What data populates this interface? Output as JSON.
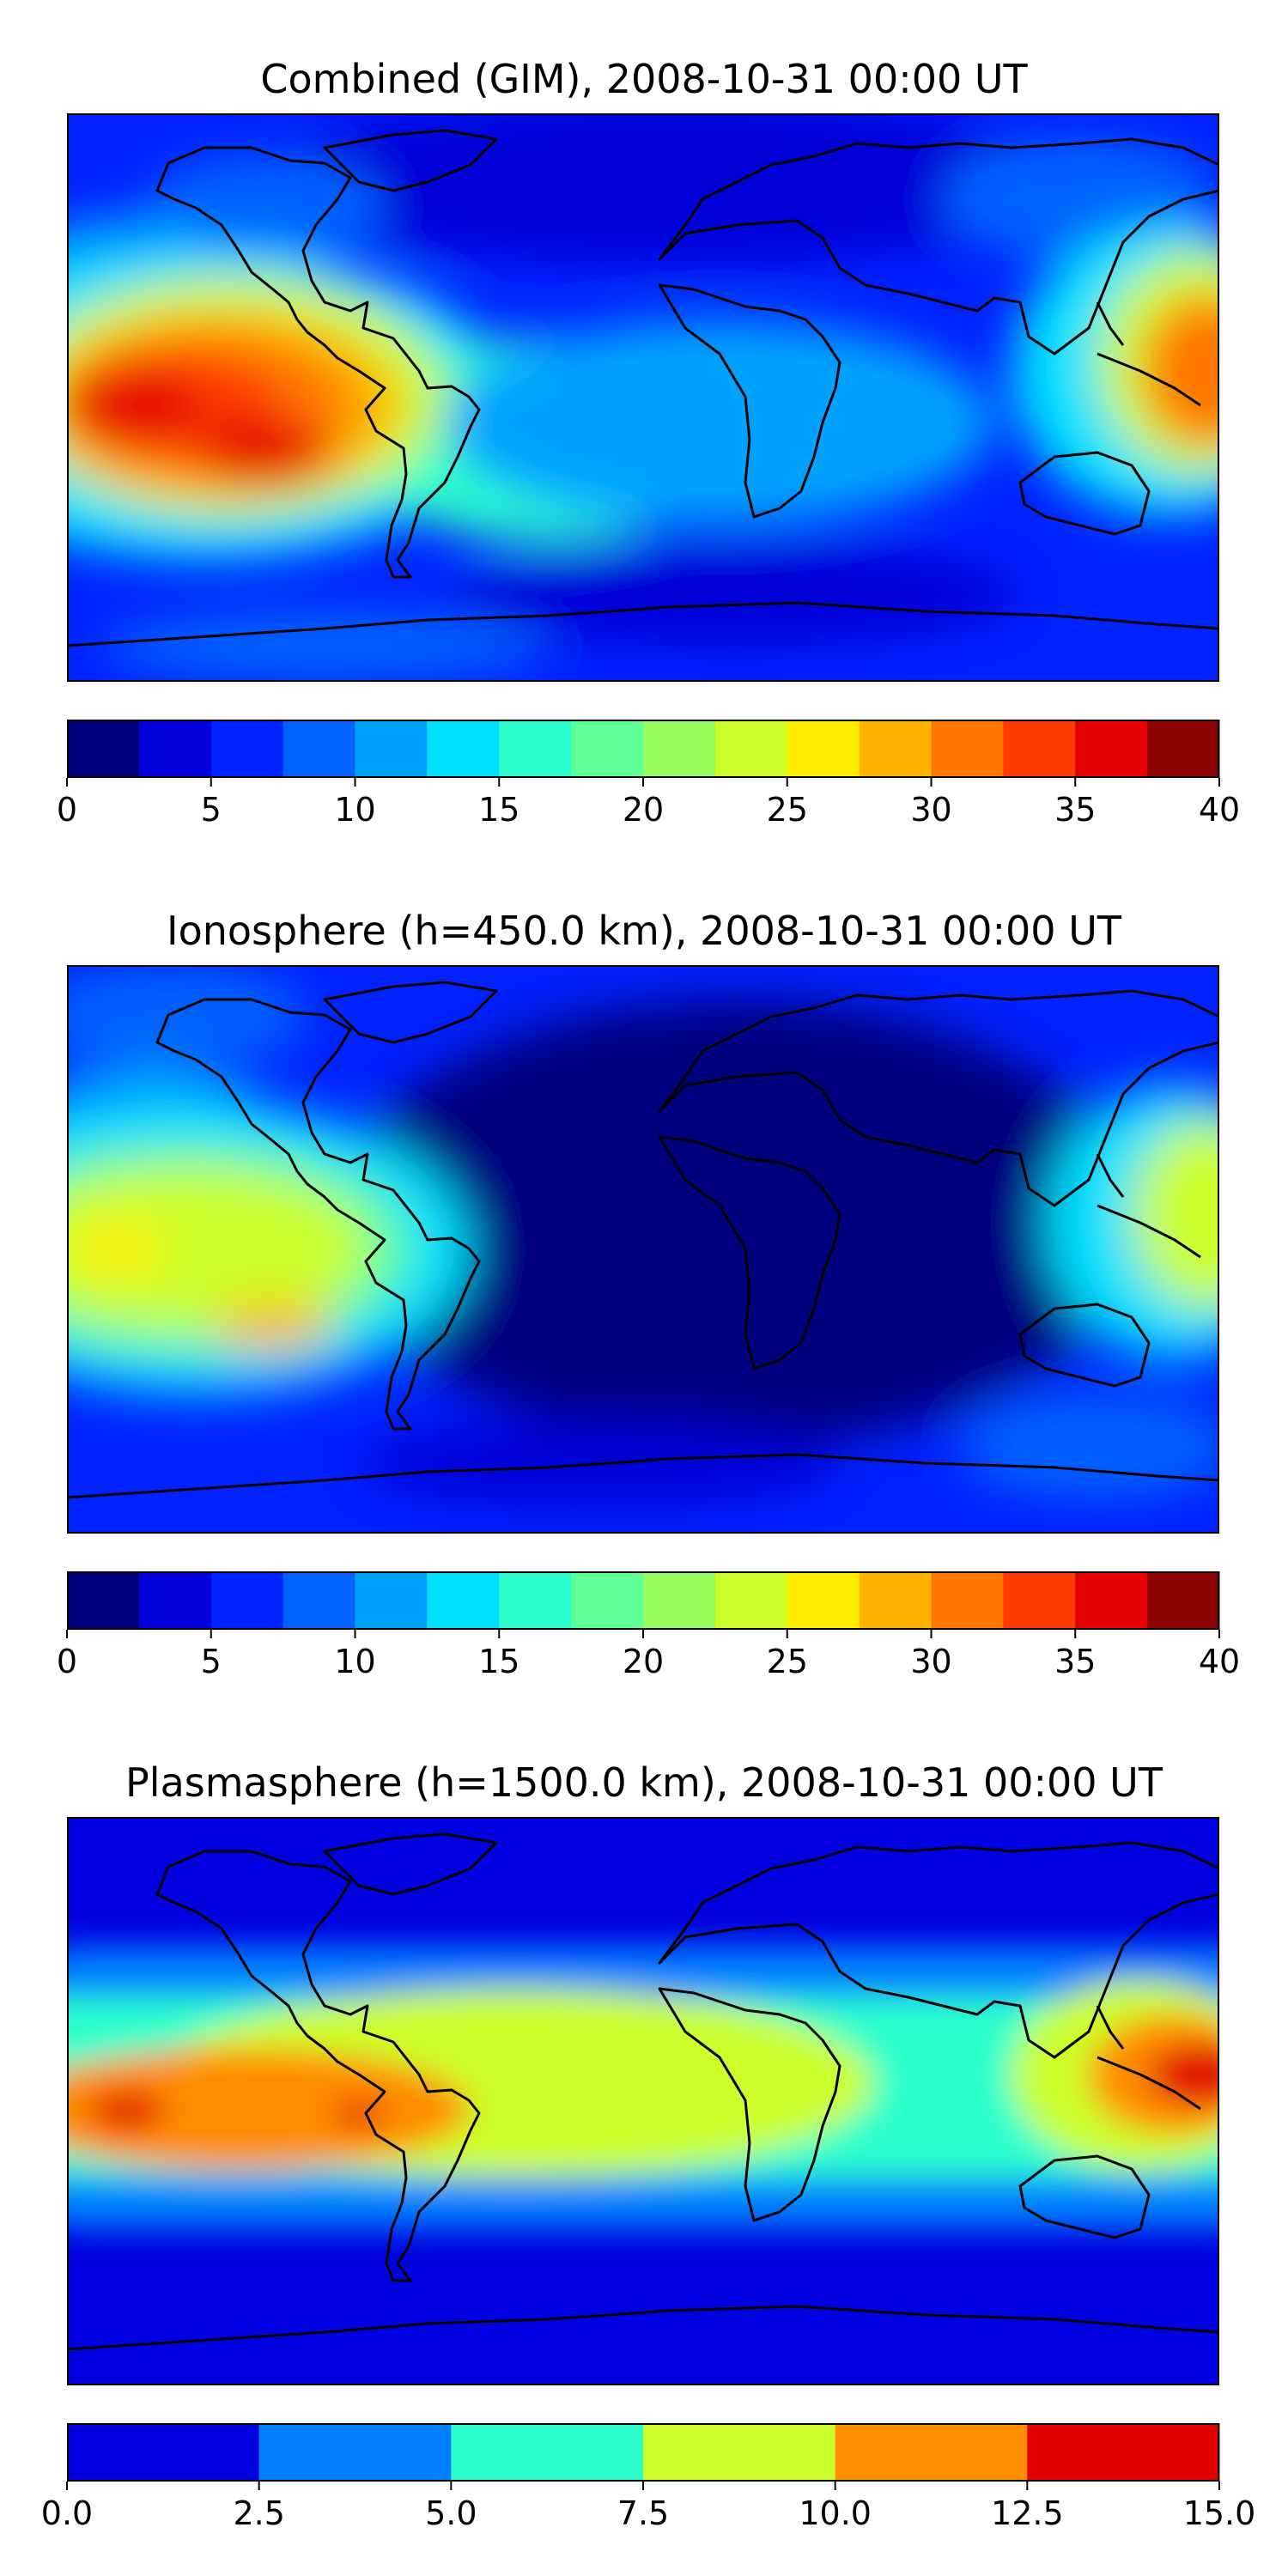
{
  "colors": {
    "jet15": [
      "#00007f",
      "#0000d8",
      "#0022ff",
      "#0063ff",
      "#00a2ff",
      "#00e0ff",
      "#2affcc",
      "#5fff96",
      "#96ff5f",
      "#ccff2a",
      "#ffee00",
      "#ffb200",
      "#ff7700",
      "#ff3b00",
      "#e50000",
      "#8b0000"
    ],
    "jet6": [
      "#0000e0",
      "#0080ff",
      "#2affcc",
      "#ccff2a",
      "#ff8c00",
      "#e00000"
    ]
  },
  "chart_data": [
    {
      "type": "heatmap",
      "title": "Combined (GIM), 2008-10-31 00:00 UT",
      "map": "world coastlines, equirectangular, lon -180..180, lat -90..90",
      "colorbar": {
        "range": [
          0,
          40
        ],
        "levels": [
          0,
          2.5,
          5,
          7.5,
          10,
          12.5,
          15,
          17.5,
          20,
          22.5,
          25,
          27.5,
          30,
          32.5,
          35,
          37.5,
          40
        ],
        "ticks": [
          0,
          5,
          10,
          15,
          20,
          25,
          30,
          35,
          40
        ],
        "tick_labels": [
          "0",
          "5",
          "10",
          "15",
          "20",
          "25",
          "30",
          "35",
          "40"
        ]
      },
      "features": [
        {
          "lon": -160,
          "lat": 5,
          "value": 36
        },
        {
          "lon": -125,
          "lat": -10,
          "value": 38
        },
        {
          "lon": 175,
          "lat": 5,
          "value": 30
        },
        {
          "lon": -165,
          "lat": 30,
          "value": 12
        },
        {
          "lon": 20,
          "lat": 20,
          "value": 8
        },
        {
          "lon": 30,
          "lat": 70,
          "value": 3
        },
        {
          "lon": 20,
          "lat": -55,
          "value": 3
        }
      ]
    },
    {
      "type": "heatmap",
      "title": "Ionosphere  (h=450.0 km), 2008-10-31 00:00 UT",
      "map": "world coastlines, equirectangular, lon -180..180, lat -90..90",
      "colorbar": {
        "range": [
          0,
          40
        ],
        "levels": [
          0,
          2.5,
          5,
          7.5,
          10,
          12.5,
          15,
          17.5,
          20,
          22.5,
          25,
          27.5,
          30,
          32.5,
          35,
          37.5,
          40
        ],
        "ticks": [
          0,
          5,
          10,
          15,
          20,
          25,
          30,
          35,
          40
        ],
        "tick_labels": [
          "0",
          "5",
          "10",
          "15",
          "20",
          "25",
          "30",
          "35",
          "40"
        ]
      },
      "features": [
        {
          "lon": -165,
          "lat": 5,
          "value": 25
        },
        {
          "lon": -125,
          "lat": -12,
          "value": 28
        },
        {
          "lon": 175,
          "lat": 10,
          "value": 20
        },
        {
          "lon": 10,
          "lat": 10,
          "value": 2
        },
        {
          "lon": -60,
          "lat": 60,
          "value": 4
        }
      ]
    },
    {
      "type": "heatmap",
      "title": "Plasmasphere (h=1500.0 km), 2008-10-31 00:00 UT",
      "map": "world coastlines, equirectangular, lon -180..180, lat -90..90",
      "colorbar": {
        "range": [
          0,
          15
        ],
        "levels": [
          0,
          2.5,
          5,
          7.5,
          10,
          12.5,
          15
        ],
        "ticks": [
          0,
          2.5,
          5,
          7.5,
          10,
          12.5,
          15
        ],
        "tick_labels": [
          "0.0",
          "2.5",
          "5.0",
          "7.5",
          "10.0",
          "12.5",
          "15.0"
        ]
      },
      "features": [
        {
          "lon": -160,
          "lat": 3,
          "value": 13
        },
        {
          "lon": 172,
          "lat": 8,
          "value": 13.5
        },
        {
          "lon": -60,
          "lat": -5,
          "value": 9
        },
        {
          "lon": 20,
          "lat": 5,
          "value": 7
        },
        {
          "lon": 0,
          "lat": 70,
          "value": 1
        },
        {
          "lon": 0,
          "lat": -65,
          "value": 1
        }
      ]
    }
  ]
}
